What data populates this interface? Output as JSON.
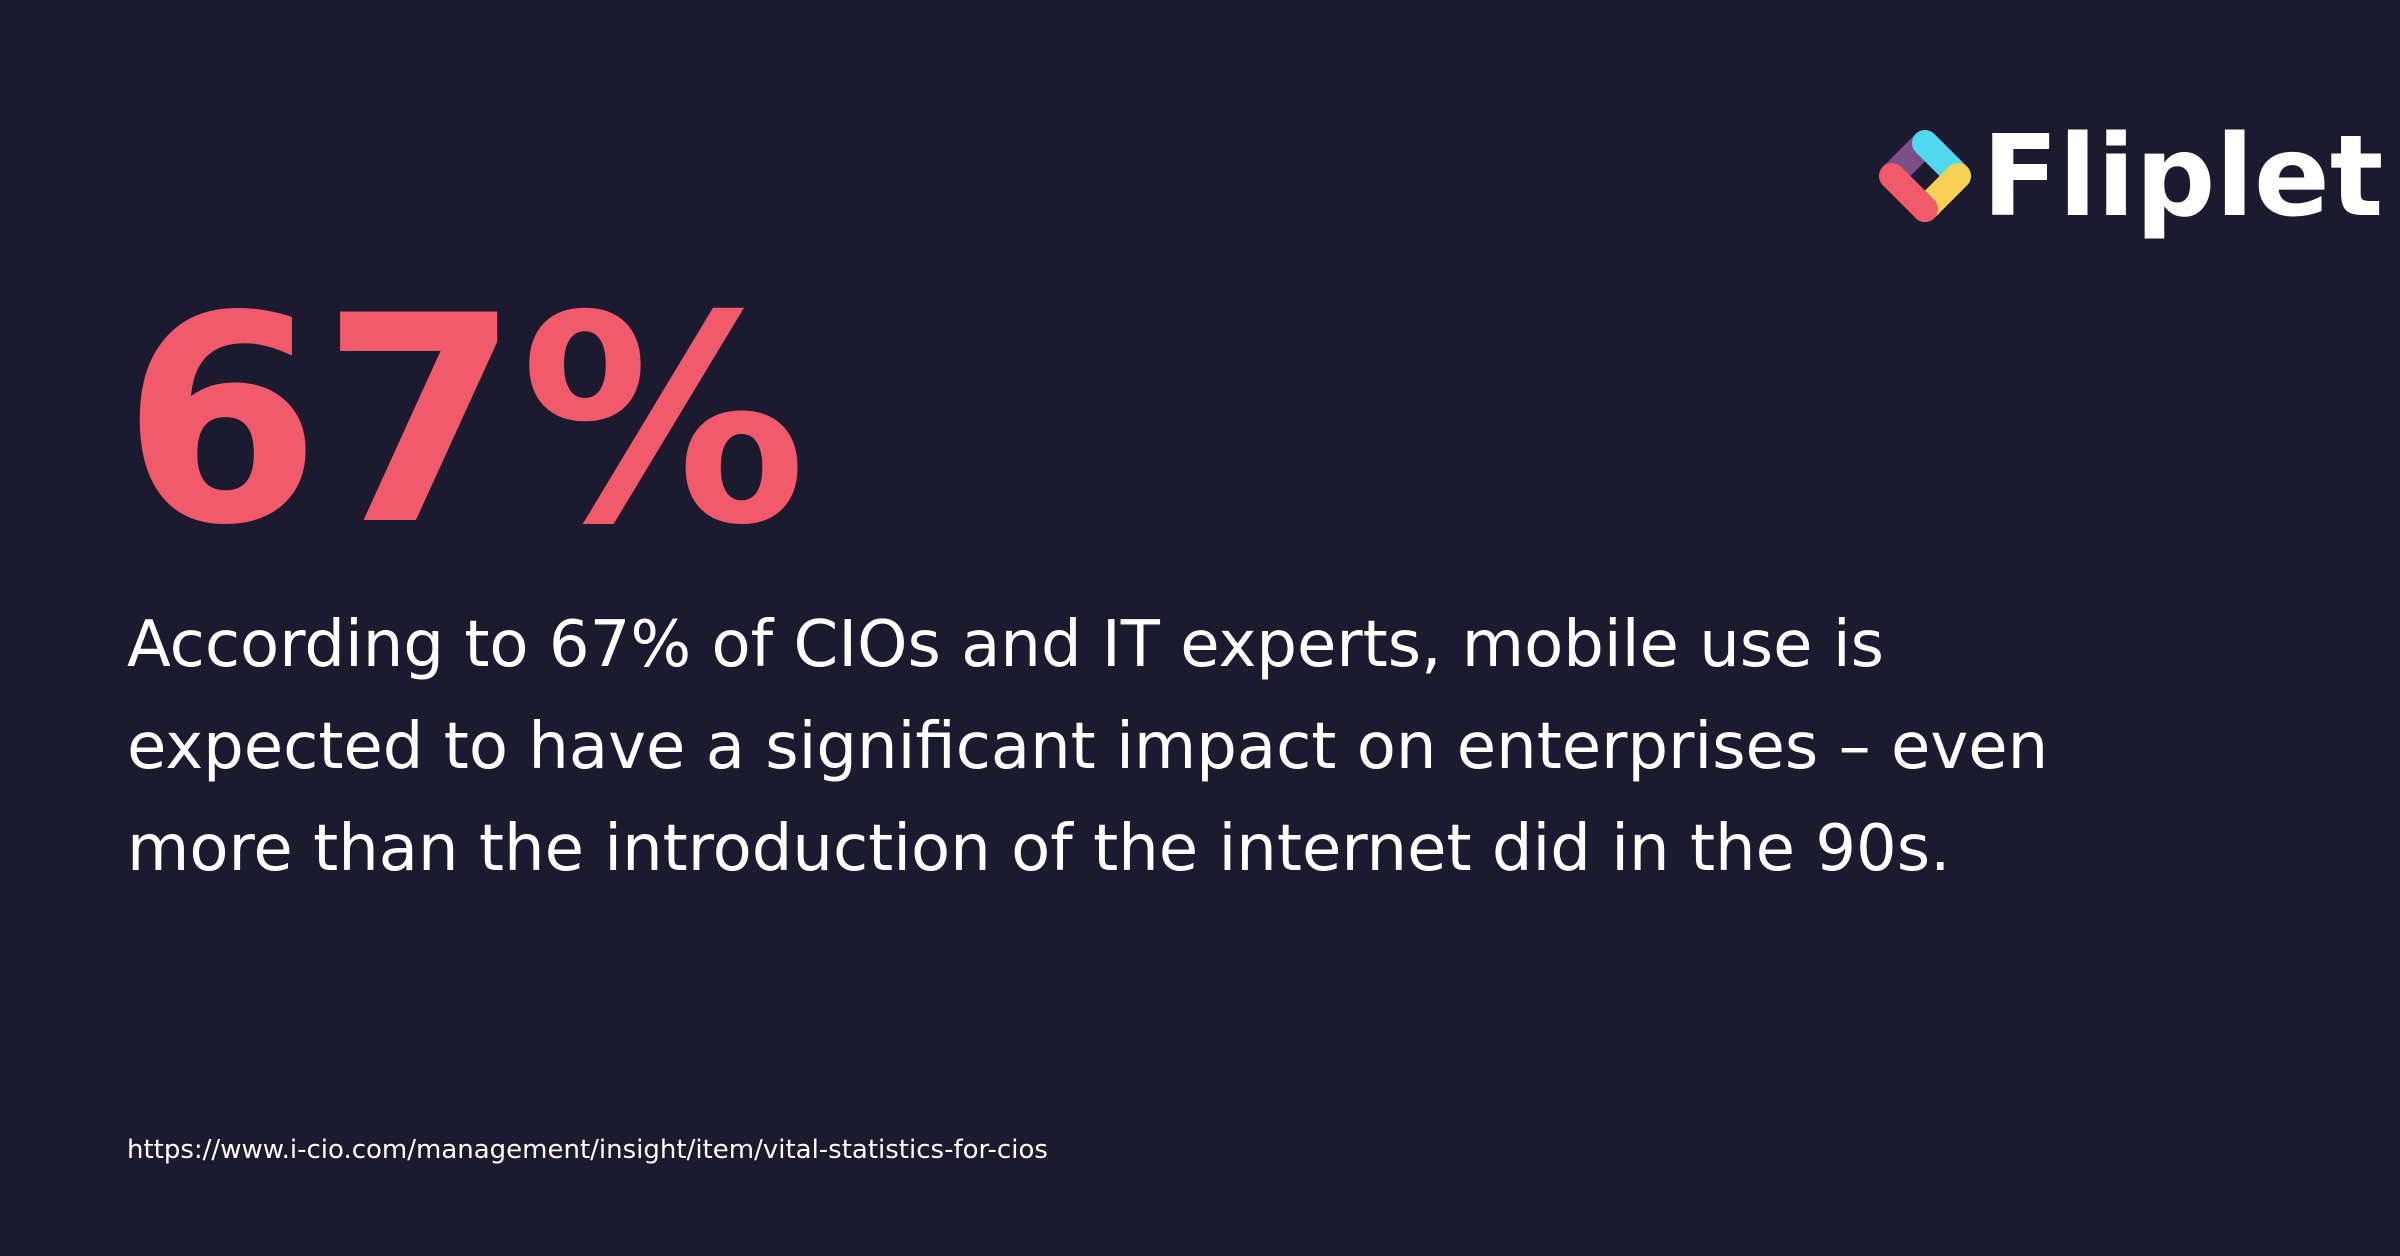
{
  "logo": {
    "text": "Fliplet"
  },
  "stat": "67%",
  "body": {
    "lines": [
      "According to 67% of CIOs and IT experts, mobile use is",
      "expected to have a significant impact on enterprises – even",
      "more than the introduction of the internet did in the 90s."
    ]
  },
  "source": "https://www.i-cio.com/management/insight/item/vital-statistics-for-cios"
}
